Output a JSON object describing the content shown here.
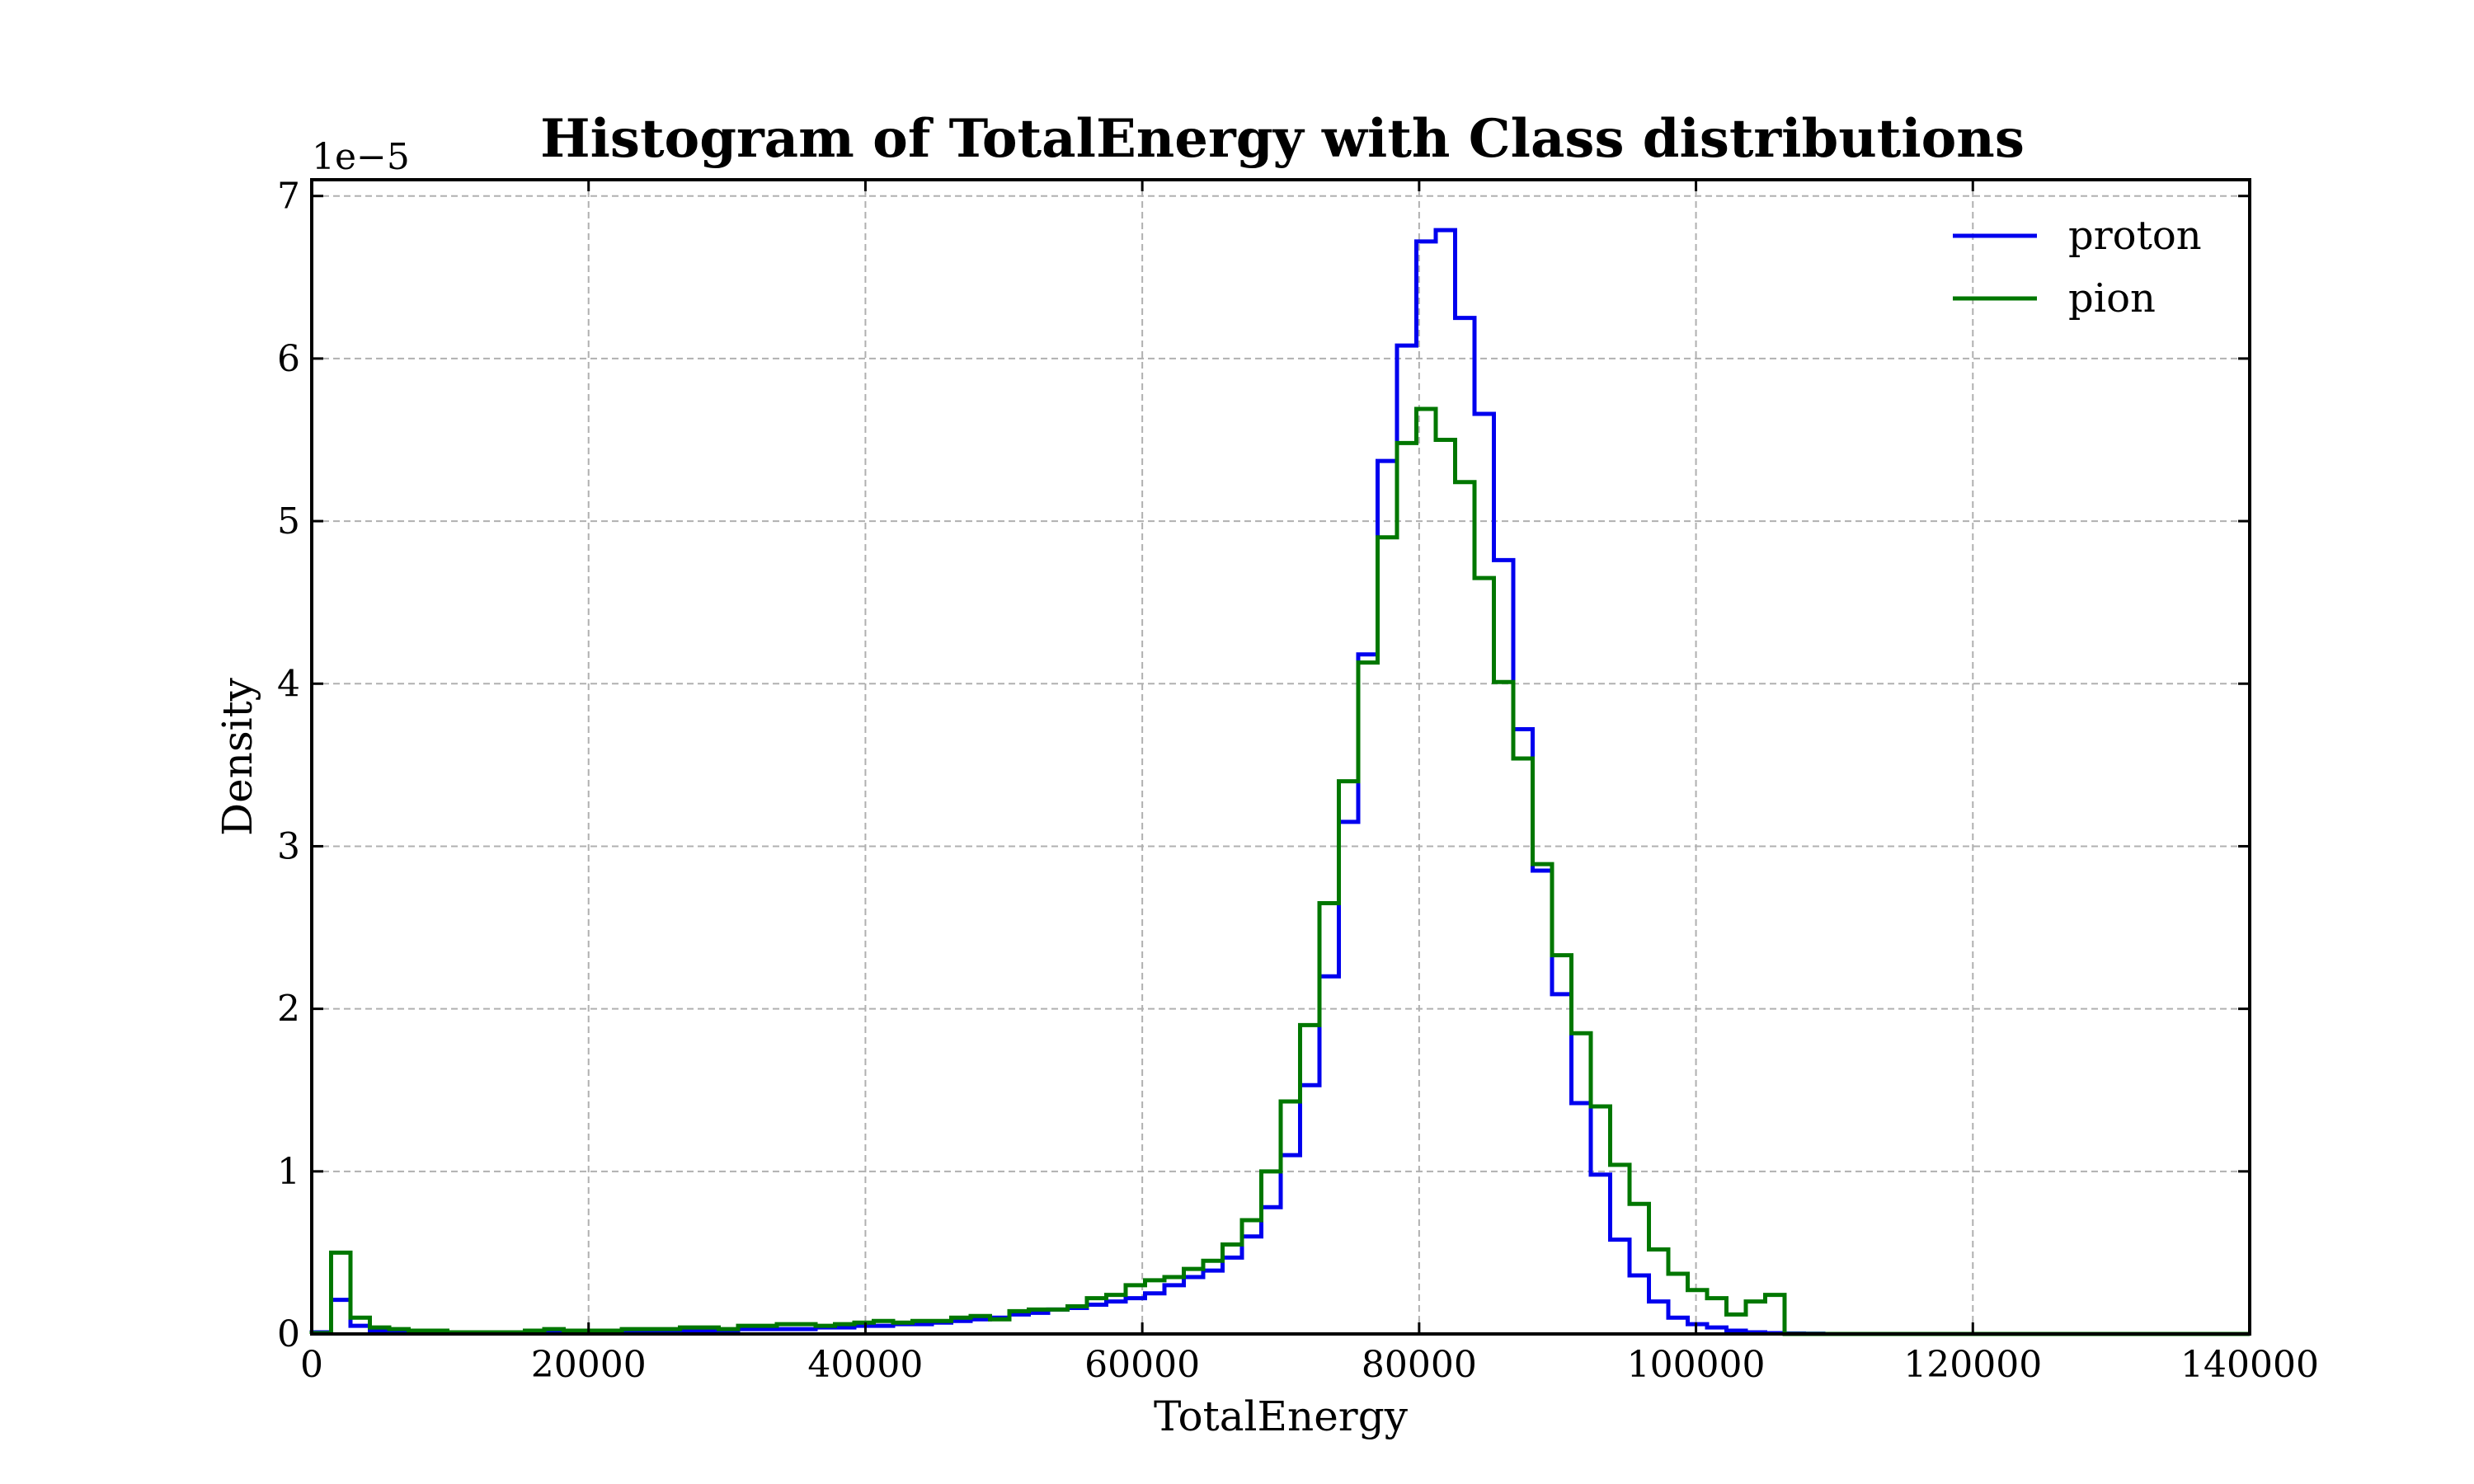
{
  "chart_data": {
    "type": "histogram-step",
    "title": "Histogram of TotalEnergy with Class distributions",
    "xlabel": "TotalEnergy",
    "ylabel": "Density",
    "y_multiplier_label": "1e−5",
    "xlim": [
      0,
      140000
    ],
    "ylim": [
      0,
      7.1
    ],
    "x_ticks": [
      0,
      20000,
      40000,
      60000,
      80000,
      100000,
      120000,
      140000
    ],
    "x_tick_labels": [
      "0",
      "20000",
      "40000",
      "60000",
      "80000",
      "100000",
      "120000",
      "140000"
    ],
    "y_ticks": [
      0,
      1,
      2,
      3,
      4,
      5,
      6,
      7
    ],
    "y_tick_labels": [
      "0",
      "1",
      "2",
      "3",
      "4",
      "5",
      "6",
      "7"
    ],
    "grid": true,
    "legend_position": "top-right",
    "bin_start": 0,
    "bin_width": 1400,
    "series": [
      {
        "name": "proton",
        "color": "#0000ee",
        "values": [
          0.01,
          0.21,
          0.05,
          0.02,
          0.01,
          0.01,
          0.01,
          0.01,
          0.01,
          0.005,
          0.005,
          0.005,
          0.01,
          0.01,
          0.01,
          0.01,
          0.01,
          0.01,
          0.02,
          0.02,
          0.02,
          0.02,
          0.03,
          0.03,
          0.03,
          0.03,
          0.04,
          0.04,
          0.05,
          0.05,
          0.06,
          0.06,
          0.07,
          0.08,
          0.09,
          0.1,
          0.12,
          0.13,
          0.15,
          0.16,
          0.18,
          0.2,
          0.22,
          0.25,
          0.3,
          0.35,
          0.39,
          0.47,
          0.6,
          0.78,
          1.1,
          1.53,
          2.2,
          3.15,
          4.18,
          5.37,
          6.08,
          6.72,
          6.79,
          6.25,
          5.66,
          4.76,
          3.72,
          2.85,
          2.09,
          1.42,
          0.98,
          0.58,
          0.36,
          0.2,
          0.1,
          0.06,
          0.04,
          0.02,
          0.01,
          0.005,
          0.003,
          0.002,
          0,
          0,
          0,
          0,
          0,
          0,
          0,
          0,
          0,
          0,
          0,
          0,
          0,
          0,
          0,
          0,
          0,
          0,
          0,
          0,
          0,
          0
        ]
      },
      {
        "name": "pion",
        "color": "#007700",
        "values": [
          0.005,
          0.5,
          0.1,
          0.04,
          0.03,
          0.02,
          0.02,
          0.01,
          0.01,
          0.01,
          0.01,
          0.02,
          0.03,
          0.02,
          0.02,
          0.02,
          0.03,
          0.03,
          0.03,
          0.04,
          0.04,
          0.03,
          0.05,
          0.05,
          0.06,
          0.06,
          0.05,
          0.06,
          0.07,
          0.08,
          0.07,
          0.08,
          0.08,
          0.1,
          0.11,
          0.09,
          0.14,
          0.15,
          0.15,
          0.17,
          0.22,
          0.24,
          0.3,
          0.33,
          0.35,
          0.4,
          0.45,
          0.55,
          0.7,
          1.0,
          1.43,
          1.9,
          2.65,
          3.4,
          4.13,
          4.9,
          5.48,
          5.69,
          5.5,
          5.24,
          4.65,
          4.01,
          3.54,
          2.89,
          2.33,
          1.85,
          1.4,
          1.04,
          0.8,
          0.52,
          0.37,
          0.27,
          0.22,
          0.12,
          0.2,
          0.24,
          0,
          0,
          0,
          0,
          0,
          0,
          0,
          0,
          0,
          0,
          0,
          0,
          0,
          0,
          0,
          0,
          0,
          0,
          0,
          0,
          0,
          0,
          0,
          0
        ]
      }
    ]
  }
}
